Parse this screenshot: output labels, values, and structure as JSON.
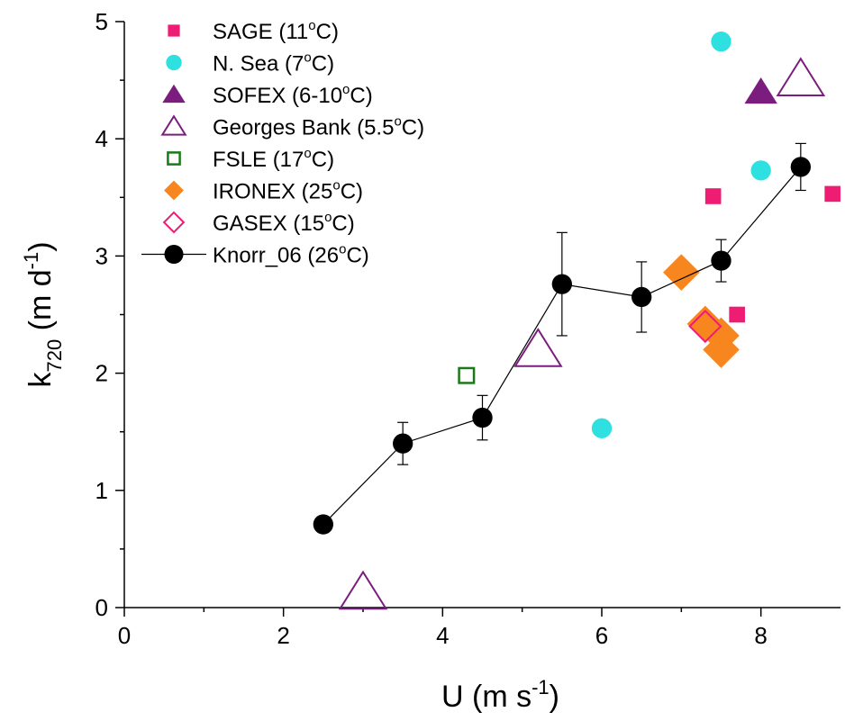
{
  "chart_data": {
    "type": "scatter",
    "xlabel": "U (m s-1)",
    "ylabel": "k720 (m d-1)",
    "xlim": [
      0,
      9
    ],
    "ylim": [
      0,
      5
    ],
    "x_ticks": [
      "0",
      "2",
      "4",
      "6",
      "8"
    ],
    "y_ticks": [
      "0",
      "1",
      "2",
      "3",
      "4",
      "5"
    ],
    "grid": false,
    "legend_position": "top-left",
    "series": [
      {
        "name": "SAGE (11°C)",
        "marker": "square-filled",
        "color": "#ef1c73",
        "points": [
          [
            7.4,
            3.51
          ],
          [
            7.7,
            2.5
          ],
          [
            8.9,
            3.53
          ]
        ]
      },
      {
        "name": "N. Sea (7°C)",
        "marker": "circle-filled",
        "color": "#2ee0e0",
        "points": [
          [
            6.0,
            1.53
          ],
          [
            7.5,
            4.83
          ],
          [
            8.0,
            3.73
          ]
        ]
      },
      {
        "name": "SOFEX (6-10°C)",
        "marker": "triangle-filled",
        "color": "#7b1d7e",
        "points": [
          [
            8.0,
            4.4
          ]
        ]
      },
      {
        "name": "Georges Bank (5.5°C)",
        "marker": "triangle-open",
        "color": "#7b1d7e",
        "points": [
          [
            3.0,
            0.13
          ],
          [
            5.2,
            2.2
          ],
          [
            8.5,
            4.51
          ]
        ]
      },
      {
        "name": "FSLE (17°C)",
        "marker": "square-open",
        "color": "#1a7a1a",
        "points": [
          [
            4.3,
            1.98
          ]
        ]
      },
      {
        "name": "IRONEX (25°C)",
        "marker": "diamond-filled",
        "color": "#f7861f",
        "points": [
          [
            7.0,
            2.86
          ],
          [
            7.3,
            2.42
          ],
          [
            7.5,
            2.32
          ],
          [
            7.5,
            2.2
          ]
        ]
      },
      {
        "name": "GASEX (15°C)",
        "marker": "diamond-open",
        "color": "#ef1c73",
        "points": [
          [
            7.3,
            2.4
          ]
        ]
      },
      {
        "name": "Knorr_06 (26°C)",
        "marker": "circle-filled-line",
        "color": "#000000",
        "points": [
          [
            2.5,
            0.71
          ],
          [
            3.5,
            1.4
          ],
          [
            4.5,
            1.62
          ],
          [
            5.5,
            2.76
          ],
          [
            6.5,
            2.65
          ],
          [
            7.5,
            2.96
          ],
          [
            8.5,
            3.76
          ]
        ],
        "errors": [
          null,
          0.18,
          0.19,
          0.44,
          0.3,
          0.18,
          0.2
        ]
      }
    ]
  }
}
